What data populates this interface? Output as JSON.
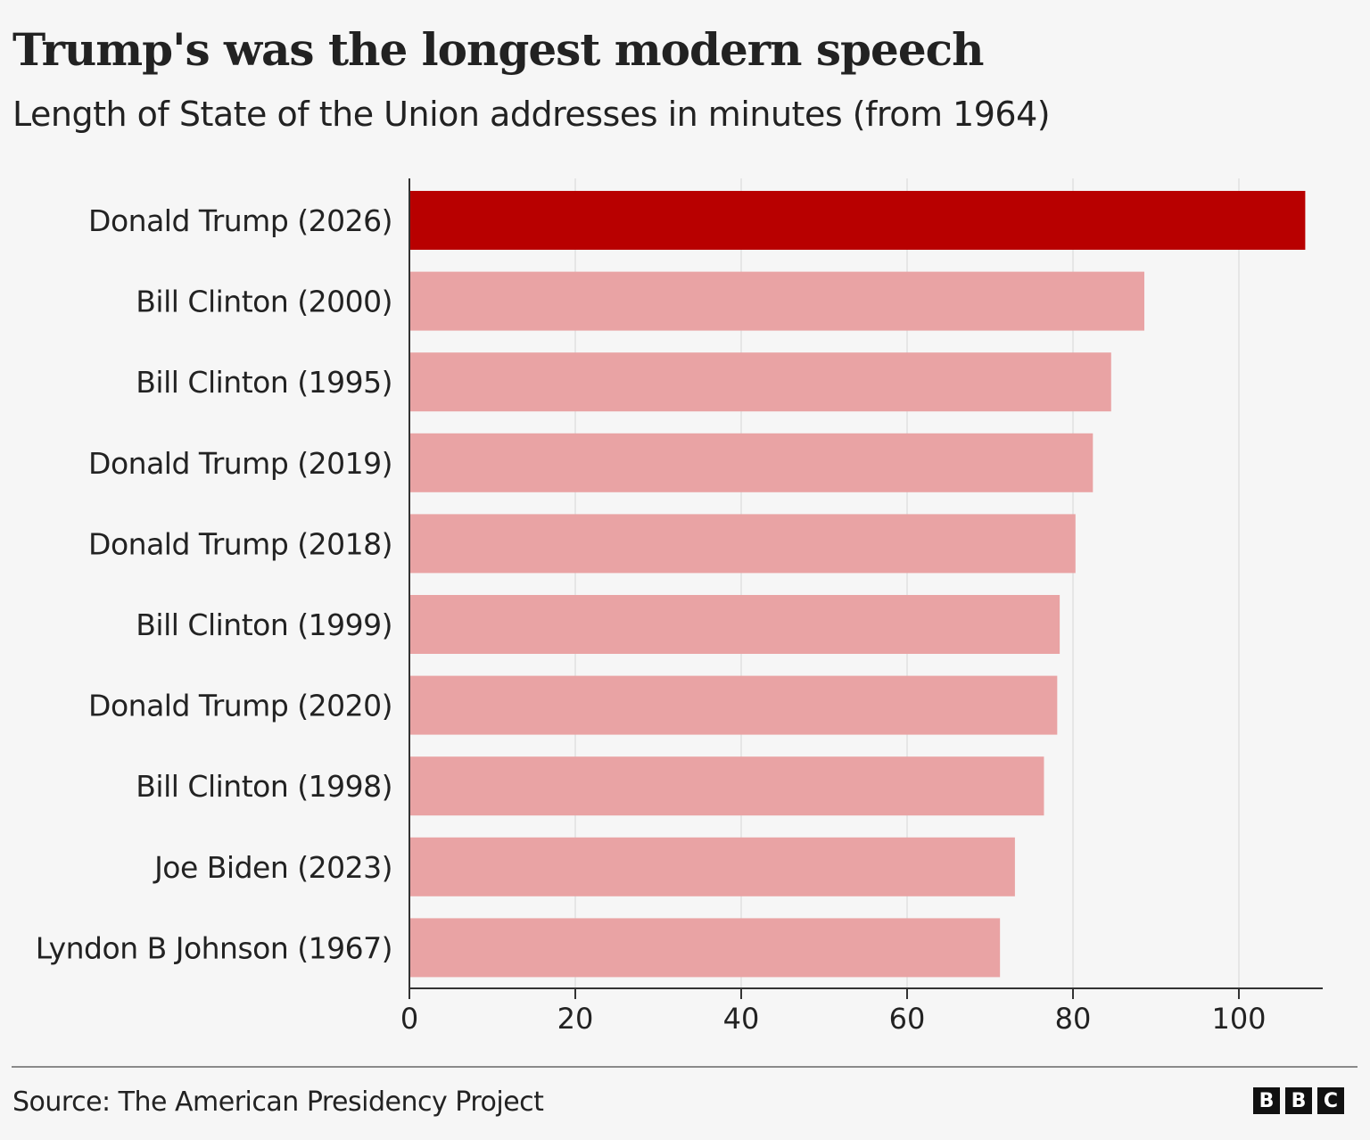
{
  "chart_data": {
    "type": "bar",
    "orientation": "horizontal",
    "title": "Trump's was the longest modern speech",
    "subtitle": "Length of State of the Union addresses in minutes (from 1964)",
    "categories": [
      "Donald Trump (2026)",
      "Bill Clinton (2000)",
      "Bill Clinton (1995)",
      "Donald Trump (2019)",
      "Donald Trump (2018)",
      "Bill Clinton (1999)",
      "Donald Trump (2020)",
      "Bill Clinton (1998)",
      "Joe Biden (2023)",
      "Lyndon B Johnson (1967)"
    ],
    "values": [
      108,
      88.6,
      84.6,
      82.4,
      80.3,
      78.4,
      78.1,
      76.5,
      73,
      71.2
    ],
    "highlight_index": 0,
    "colors": {
      "highlight": "#b80000",
      "default": "#e9a3a4"
    },
    "xlim": [
      0,
      110
    ],
    "xticks": [
      0,
      20,
      40,
      60,
      80,
      100
    ],
    "grid": true,
    "xlabel": "",
    "ylabel": ""
  },
  "footer": {
    "source": "Source: The American Presidency Project",
    "logo": "BBC"
  }
}
